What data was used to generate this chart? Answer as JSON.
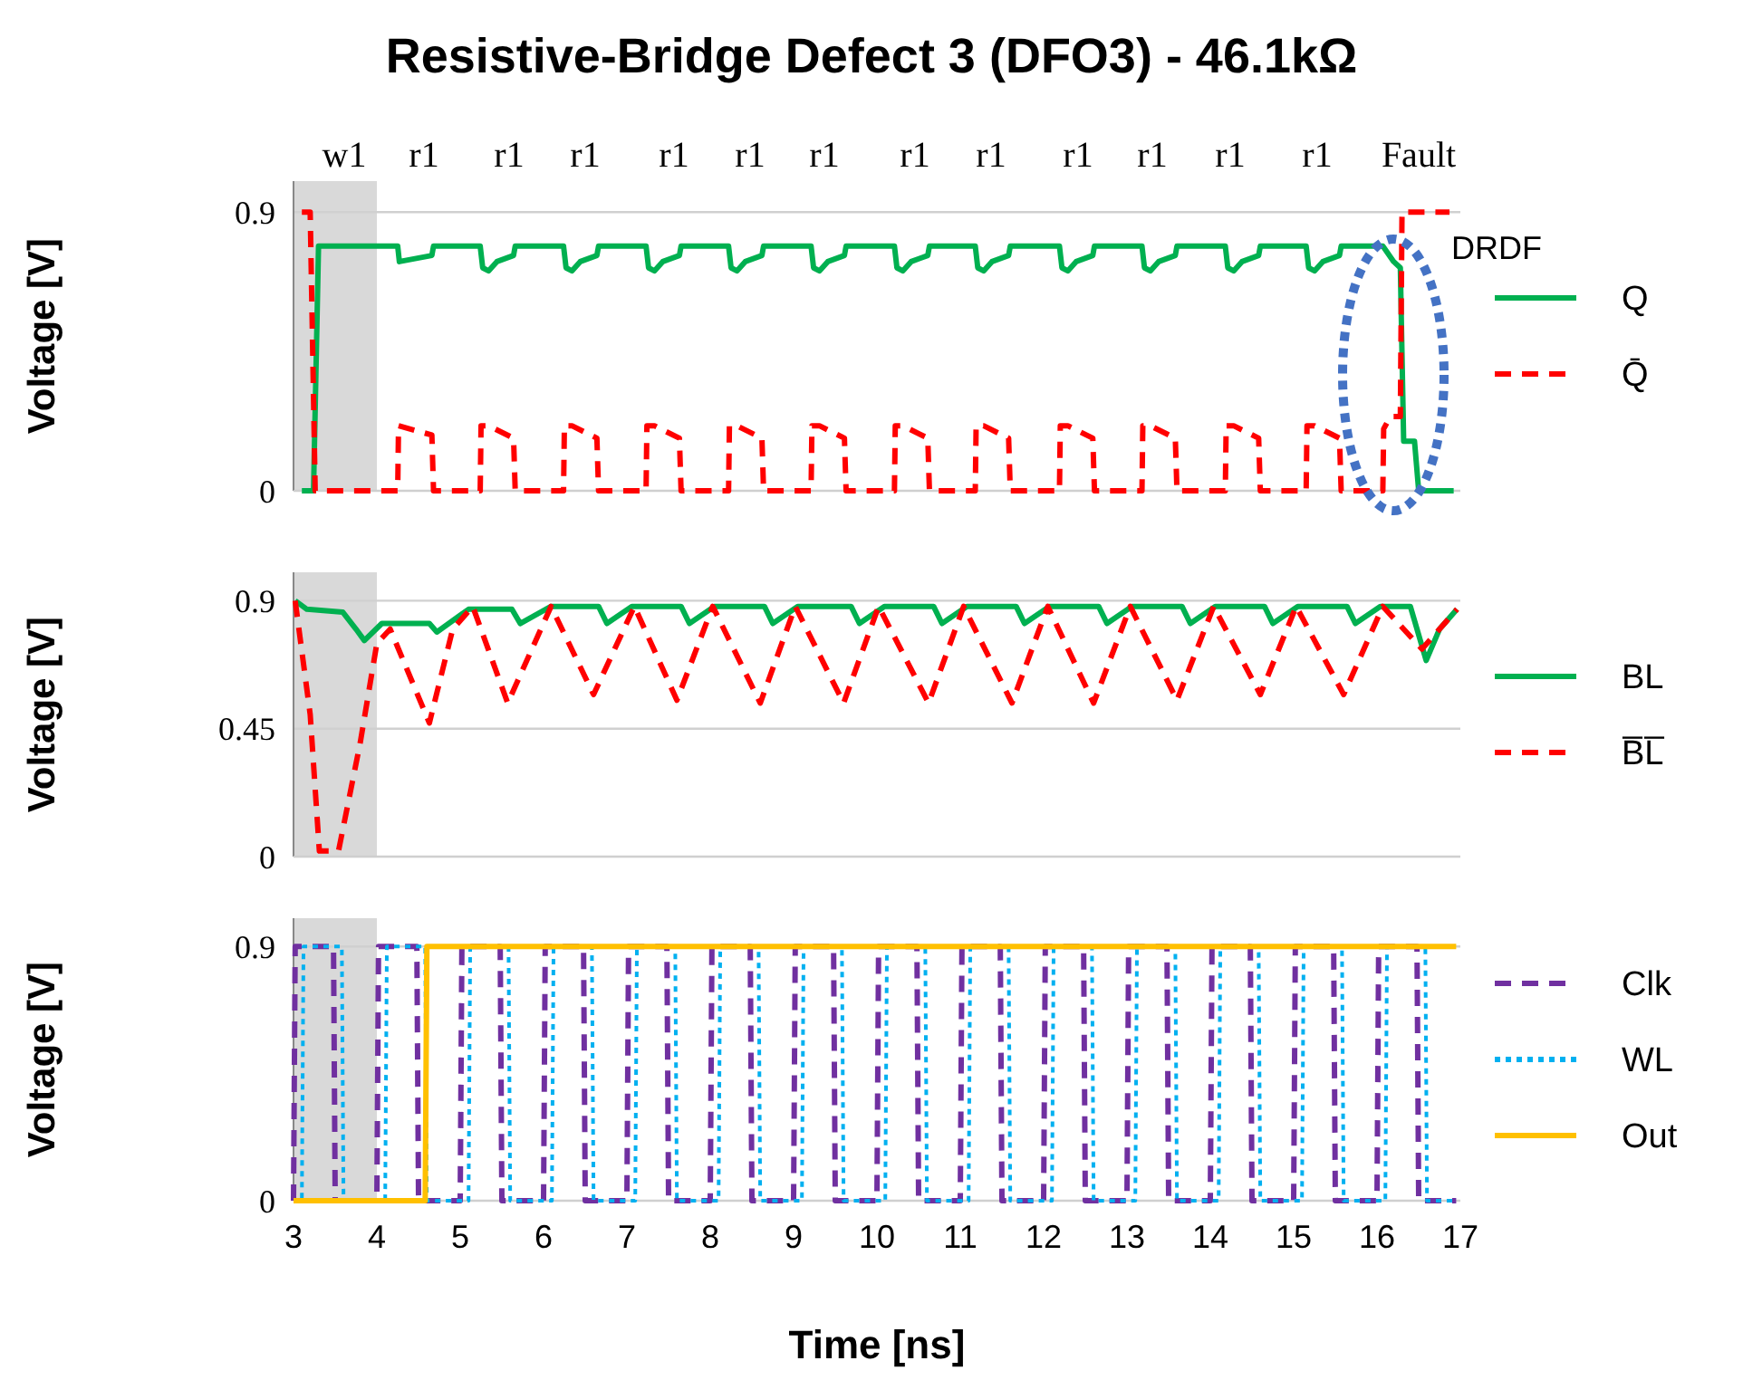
{
  "chart_data": [
    {
      "type": "line",
      "title": "Resistive-Bridge Defect 3 (DFO3) - 46.1kΩ",
      "ylabel": "Voltage [V]",
      "xlim": [
        3,
        17
      ],
      "ylim": [
        0,
        1
      ],
      "yticks": [
        0,
        0.9
      ],
      "grid": "y",
      "legend": "right",
      "tick_labels": "y",
      "bands": [
        {
          "axis": "x",
          "from": 3,
          "to": 4,
          "color": "#d9d9d9"
        }
      ],
      "annotations": [
        "w1",
        "r1",
        "r1",
        "r1",
        "r1",
        "r1",
        "r1",
        "r1",
        "r1",
        "r1",
        "r1",
        "r1",
        "r1",
        "Fault",
        "DRDF"
      ],
      "series": [
        {
          "name": "Q",
          "type": "line",
          "color": "#00b050",
          "line_style": "solid",
          "x": [
            3.1,
            3.24,
            3.3,
            4.25,
            4.27,
            4.66,
            4.68,
            5.24,
            5.27,
            5.34,
            5.44,
            5.64,
            5.66,
            6.24,
            6.27,
            6.34,
            6.44,
            6.64,
            6.66,
            7.23,
            7.26,
            7.33,
            7.43,
            7.63,
            7.65,
            8.22,
            8.25,
            8.32,
            8.42,
            8.62,
            8.64,
            9.21,
            9.24,
            9.31,
            9.41,
            9.61,
            9.63,
            10.21,
            10.24,
            10.31,
            10.41,
            10.61,
            10.63,
            11.18,
            11.21,
            11.28,
            11.38,
            11.58,
            11.6,
            12.19,
            12.22,
            12.29,
            12.39,
            12.59,
            12.61,
            13.18,
            13.21,
            13.28,
            13.38,
            13.58,
            13.6,
            14.18,
            14.21,
            14.28,
            14.38,
            14.58,
            14.6,
            15.15,
            15.18,
            15.25,
            15.35,
            15.55,
            15.57,
            16.07,
            16.2,
            16.28,
            16.32,
            16.45,
            16.5,
            16.92
          ],
          "values": [
            0,
            0,
            0.79,
            0.79,
            0.74,
            0.76,
            0.79,
            0.79,
            0.72,
            0.71,
            0.74,
            0.76,
            0.79,
            0.79,
            0.72,
            0.71,
            0.74,
            0.76,
            0.79,
            0.79,
            0.72,
            0.71,
            0.74,
            0.76,
            0.79,
            0.79,
            0.72,
            0.71,
            0.74,
            0.76,
            0.79,
            0.79,
            0.72,
            0.71,
            0.74,
            0.76,
            0.79,
            0.79,
            0.72,
            0.71,
            0.74,
            0.76,
            0.79,
            0.79,
            0.72,
            0.71,
            0.74,
            0.76,
            0.79,
            0.79,
            0.72,
            0.71,
            0.74,
            0.76,
            0.79,
            0.79,
            0.72,
            0.71,
            0.74,
            0.76,
            0.79,
            0.79,
            0.72,
            0.71,
            0.74,
            0.76,
            0.79,
            0.79,
            0.72,
            0.71,
            0.74,
            0.76,
            0.79,
            0.79,
            0.74,
            0.72,
            0.16,
            0.16,
            0,
            0
          ]
        },
        {
          "name": "Q̄",
          "type": "line",
          "color": "#ff0000",
          "line_style": "dashed",
          "x": [
            3.1,
            3.2,
            3.26,
            4.25,
            4.26,
            4.66,
            4.68,
            5.24,
            5.25,
            5.34,
            5.64,
            5.66,
            6.24,
            6.25,
            6.34,
            6.64,
            6.66,
            7.23,
            7.24,
            7.33,
            7.63,
            7.65,
            8.22,
            8.23,
            8.32,
            8.62,
            8.64,
            9.21,
            9.22,
            9.31,
            9.61,
            9.63,
            10.21,
            10.22,
            10.31,
            10.61,
            10.63,
            11.18,
            11.19,
            11.28,
            11.58,
            11.6,
            12.19,
            12.2,
            12.29,
            12.59,
            12.61,
            13.18,
            13.19,
            13.28,
            13.58,
            13.6,
            14.18,
            14.19,
            14.28,
            14.58,
            14.6,
            15.15,
            15.16,
            15.25,
            15.55,
            15.57,
            16.07,
            16.08,
            16.16,
            16.28,
            16.3,
            16.87
          ],
          "values": [
            0.9,
            0.9,
            0,
            0,
            0.21,
            0.18,
            0,
            0,
            0.21,
            0.21,
            0.17,
            0,
            0,
            0.21,
            0.21,
            0.17,
            0,
            0,
            0.21,
            0.21,
            0.17,
            0,
            0,
            0.21,
            0.21,
            0.17,
            0,
            0,
            0.21,
            0.21,
            0.17,
            0,
            0,
            0.21,
            0.21,
            0.17,
            0,
            0,
            0.21,
            0.21,
            0.17,
            0,
            0,
            0.21,
            0.21,
            0.17,
            0,
            0,
            0.21,
            0.21,
            0.17,
            0,
            0,
            0.21,
            0.21,
            0.17,
            0,
            0,
            0.21,
            0.21,
            0.17,
            0,
            0,
            0.2,
            0.24,
            0.24,
            0.9,
            0.9
          ]
        }
      ]
    },
    {
      "type": "line",
      "ylabel": "Voltage [V]",
      "xlim": [
        3,
        17
      ],
      "ylim": [
        0,
        1
      ],
      "yticks": [
        0,
        0.45,
        0.9
      ],
      "grid": "y",
      "legend": "right",
      "tick_labels": "y",
      "bands": [
        {
          "axis": "x",
          "from": 3,
          "to": 4,
          "color": "#d9d9d9"
        }
      ],
      "series": [
        {
          "name": "BL",
          "type": "line",
          "color": "#00b050",
          "line_style": "solid",
          "x": [
            3.02,
            3.16,
            3.59,
            3.75,
            3.85,
            4.06,
            4.63,
            4.72,
            5.1,
            5.62,
            5.72,
            6.09,
            6.66,
            6.76,
            7.06,
            7.65,
            7.75,
            8.05,
            8.65,
            8.75,
            9.05,
            9.69,
            9.79,
            10.09,
            10.68,
            10.78,
            11.08,
            11.67,
            11.77,
            12.07,
            12.66,
            12.76,
            13.06,
            13.66,
            13.76,
            14.06,
            14.65,
            14.75,
            15.05,
            15.64,
            15.74,
            16.04,
            16.4,
            16.59,
            16.75,
            16.96
          ],
          "values": [
            0.9,
            0.87,
            0.86,
            0.8,
            0.76,
            0.82,
            0.82,
            0.79,
            0.87,
            0.87,
            0.82,
            0.88,
            0.88,
            0.82,
            0.88,
            0.88,
            0.82,
            0.88,
            0.88,
            0.82,
            0.88,
            0.88,
            0.82,
            0.88,
            0.88,
            0.82,
            0.88,
            0.88,
            0.82,
            0.88,
            0.88,
            0.82,
            0.88,
            0.88,
            0.82,
            0.88,
            0.88,
            0.82,
            0.88,
            0.88,
            0.82,
            0.88,
            0.88,
            0.69,
            0.8,
            0.87
          ]
        },
        {
          "name": "B̅L̅",
          "type": "line",
          "color": "#ff0000",
          "line_style": "dashed",
          "x": [
            3.02,
            3.2,
            3.31,
            3.54,
            3.8,
            4.0,
            4.16,
            4.63,
            4.91,
            5.15,
            5.57,
            6.09,
            6.6,
            7.09,
            7.6,
            8.03,
            8.6,
            9.02,
            9.6,
            10.02,
            10.62,
            11.04,
            11.62,
            12.05,
            12.6,
            13.04,
            13.6,
            14.04,
            14.6,
            15.03,
            15.6,
            16.07,
            16.54,
            16.96
          ],
          "values": [
            0.9,
            0.5,
            0.02,
            0.02,
            0.4,
            0.75,
            0.8,
            0.47,
            0.8,
            0.88,
            0.54,
            0.88,
            0.57,
            0.88,
            0.55,
            0.88,
            0.54,
            0.88,
            0.54,
            0.88,
            0.54,
            0.88,
            0.54,
            0.88,
            0.54,
            0.88,
            0.55,
            0.88,
            0.57,
            0.88,
            0.57,
            0.88,
            0.73,
            0.87
          ]
        }
      ]
    },
    {
      "type": "line",
      "ylabel": "Voltage [V]",
      "xlabel": "Time [ns]",
      "xlim": [
        3,
        17
      ],
      "xticks": [
        3,
        4,
        5,
        6,
        7,
        8,
        9,
        10,
        11,
        12,
        13,
        14,
        15,
        16,
        17
      ],
      "ylim": [
        0,
        1
      ],
      "yticks": [
        0,
        0.9
      ],
      "grid": "y",
      "legend": "right",
      "bands": [
        {
          "axis": "x",
          "from": 3,
          "to": 4,
          "color": "#d9d9d9"
        }
      ],
      "series": [
        {
          "name": "Clk",
          "type": "line",
          "color": "#7030a0",
          "line_style": "dashed",
          "x": [
            3,
            3.02,
            3.48,
            3.5,
            4,
            4.02,
            4.48,
            4.5,
            5,
            5.02,
            5.48,
            5.5,
            6,
            6.02,
            6.48,
            6.5,
            7,
            7.02,
            7.48,
            7.5,
            8,
            8.02,
            8.48,
            8.5,
            9,
            9.02,
            9.48,
            9.5,
            10,
            10.02,
            10.48,
            10.5,
            11,
            11.02,
            11.48,
            11.5,
            12,
            12.02,
            12.48,
            12.5,
            13,
            13.02,
            13.48,
            13.5,
            14,
            14.02,
            14.48,
            14.5,
            15,
            15.02,
            15.48,
            15.5,
            16,
            16.02,
            16.48,
            16.5,
            16.95
          ],
          "values": [
            0,
            0.9,
            0.9,
            0,
            0,
            0.9,
            0.9,
            0,
            0,
            0.9,
            0.9,
            0,
            0,
            0.9,
            0.9,
            0,
            0,
            0.9,
            0.9,
            0,
            0,
            0.9,
            0.9,
            0,
            0,
            0.9,
            0.9,
            0,
            0,
            0.9,
            0.9,
            0,
            0,
            0.9,
            0.9,
            0,
            0,
            0.9,
            0.9,
            0,
            0,
            0.9,
            0.9,
            0,
            0,
            0.9,
            0.9,
            0,
            0,
            0.9,
            0.9,
            0,
            0,
            0.9,
            0.9,
            0,
            0
          ]
        },
        {
          "name": "WL",
          "type": "line",
          "color": "#00b0f0",
          "line_style": "dotted",
          "x": [
            3,
            3.1,
            3.12,
            3.58,
            3.6,
            4.1,
            4.12,
            4.58,
            4.6,
            5.1,
            5.12,
            5.58,
            5.6,
            6.1,
            6.12,
            6.58,
            6.6,
            7.1,
            7.12,
            7.58,
            7.6,
            8.1,
            8.12,
            8.58,
            8.6,
            9.1,
            9.12,
            9.58,
            9.6,
            10.1,
            10.12,
            10.58,
            10.6,
            11.1,
            11.12,
            11.58,
            11.6,
            12.1,
            12.12,
            12.58,
            12.6,
            13.1,
            13.12,
            13.58,
            13.6,
            14.1,
            14.12,
            14.58,
            14.6,
            15.1,
            15.12,
            15.58,
            15.6,
            16.1,
            16.12,
            16.58,
            16.6,
            16.95
          ],
          "values": [
            0,
            0,
            0.9,
            0.9,
            0,
            0,
            0.9,
            0.9,
            0,
            0,
            0.9,
            0.9,
            0,
            0,
            0.9,
            0.9,
            0,
            0,
            0.9,
            0.9,
            0,
            0,
            0.9,
            0.9,
            0,
            0,
            0.9,
            0.9,
            0,
            0,
            0.9,
            0.9,
            0,
            0,
            0.9,
            0.9,
            0,
            0,
            0.9,
            0.9,
            0,
            0,
            0.9,
            0.9,
            0,
            0,
            0.9,
            0.9,
            0,
            0,
            0.9,
            0.9,
            0,
            0,
            0.9,
            0.9,
            0,
            0
          ]
        },
        {
          "name": "Out",
          "type": "line",
          "color": "#ffc000",
          "line_style": "solid",
          "x": [
            3,
            4.58,
            4.6,
            16.95
          ],
          "values": [
            0,
            0,
            0.9,
            0.9
          ]
        }
      ]
    }
  ]
}
